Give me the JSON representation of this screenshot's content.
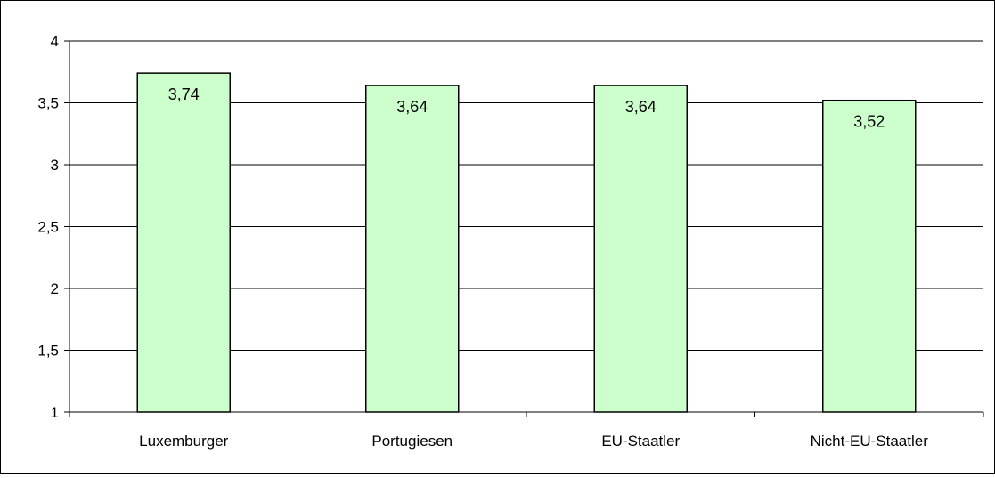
{
  "chart_data": {
    "type": "bar",
    "categories": [
      "Luxemburger",
      "Portugiesen",
      "EU-Staatler",
      "Nicht-EU-Staatler"
    ],
    "values": [
      3.74,
      3.64,
      3.64,
      3.52
    ],
    "value_labels": [
      "3,74",
      "3,64",
      "3,64",
      "3,52"
    ],
    "ylim": [
      1,
      4
    ],
    "y_ticks": [
      {
        "value": 1,
        "label": "1"
      },
      {
        "value": 1.5,
        "label": "1,5"
      },
      {
        "value": 2,
        "label": "2"
      },
      {
        "value": 2.5,
        "label": "2,5"
      },
      {
        "value": 3,
        "label": "3"
      },
      {
        "value": 3.5,
        "label": "3,5"
      },
      {
        "value": 4,
        "label": "4"
      }
    ],
    "grid": true,
    "legend": "none",
    "colors": {
      "bar_fill": "#ccffcc",
      "bar_stroke": "#000000",
      "gridline": "#000000",
      "border": "#000000"
    }
  }
}
